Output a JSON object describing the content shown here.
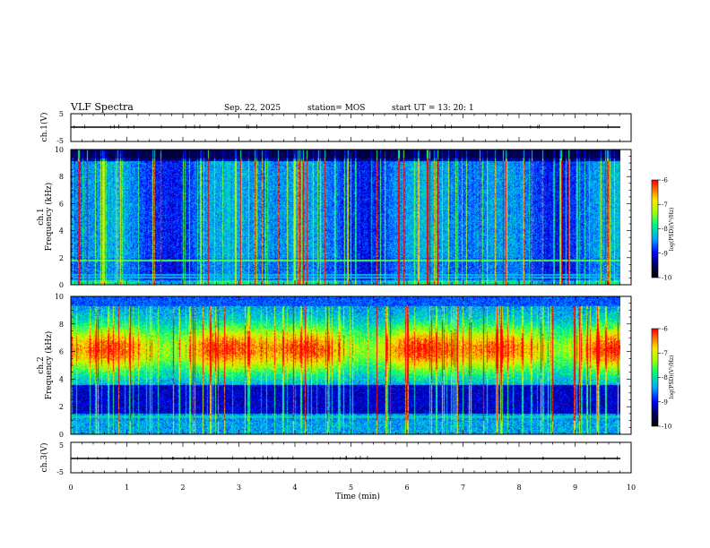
{
  "header": {
    "title": "VLF Spectra",
    "date": "Sep. 22, 2025",
    "station": "station= MOS",
    "start": "start  UT  =   13: 20: 1"
  },
  "chart_data": [
    {
      "type": "line",
      "panel": "ch1-waveform",
      "ylabel": "ch.1(V)",
      "ylim": [
        -5,
        5
      ],
      "yticks": [
        "5",
        "-5"
      ],
      "xlim": [
        0,
        10
      ],
      "series": [
        {
          "x": [
            0,
            9.8
          ],
          "y": [
            0,
            0
          ]
        }
      ]
    },
    {
      "type": "heatmap",
      "panel": "ch1-spectrogram",
      "ylabel": "ch.1\nFrequency (kHz)",
      "ylim": [
        0,
        10
      ],
      "yticks": [
        "0",
        "2",
        "4",
        "6",
        "8",
        "10"
      ],
      "xlim": [
        0,
        10
      ],
      "data_end_min": 9.8,
      "colorbar": {
        "label": "log(PSD)(V²/Hz)",
        "ticks": [
          "-6",
          "-7",
          "-8",
          "-9",
          "-10"
        ],
        "range": [
          -10,
          -6
        ]
      },
      "lines_khz": [
        0.5,
        0.7,
        1.8
      ]
    },
    {
      "type": "heatmap",
      "panel": "ch2-spectrogram",
      "ylabel": "ch.2\nFrequency (kHz)",
      "ylim": [
        0,
        10
      ],
      "yticks": [
        "0",
        "2",
        "4",
        "6",
        "8",
        "10"
      ],
      "xlim": [
        0,
        10
      ],
      "data_end_min": 9.8,
      "colorbar": {
        "label": "log(PSD)(V²/Hz)",
        "ticks": [
          "-6",
          "-7",
          "-8",
          "-9",
          "-10"
        ],
        "range": [
          -10,
          -6
        ]
      },
      "band_khz": [
        4,
        8.5
      ],
      "lines_khz": [
        1.3,
        2.0
      ]
    },
    {
      "type": "line",
      "panel": "ch3-waveform",
      "ylabel": "ch.3(V)",
      "ylim": [
        -5,
        5
      ],
      "yticks": [
        "5",
        "-5"
      ],
      "xlabel": "Time  (min)",
      "xlim": [
        0,
        10
      ],
      "xticks": [
        "0",
        "1",
        "2",
        "3",
        "4",
        "5",
        "6",
        "7",
        "8",
        "9",
        "10"
      ],
      "series": [
        {
          "x": [
            0,
            9.8
          ],
          "y": [
            0,
            0
          ]
        }
      ]
    }
  ],
  "colors": {
    "background": "#ffffff",
    "axis": "#000000",
    "colormap_low": "#000000",
    "colormap_high": "#ff0000"
  }
}
